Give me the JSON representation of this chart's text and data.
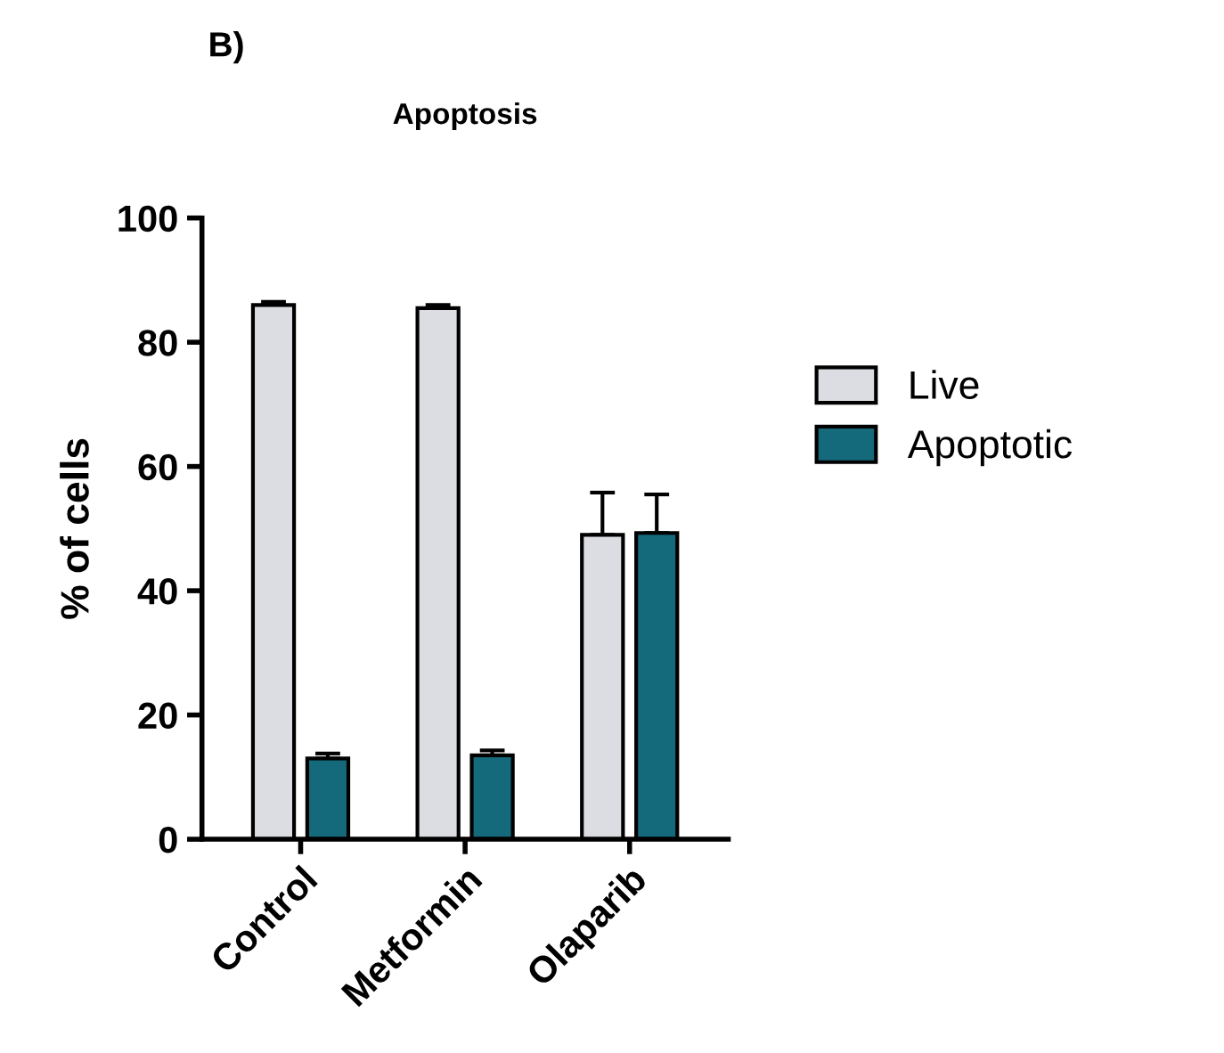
{
  "chart_data": {
    "type": "bar",
    "title": "Apoptosis",
    "ylabel": "% of cells",
    "annotations": [
      "B)"
    ],
    "categories": [
      "Control",
      "Metformin",
      "Olaparib"
    ],
    "series": [
      {
        "name": "Live",
        "color": "#dcdde3",
        "values": [
          86,
          85.5,
          49
        ],
        "errors": [
          [
            86,
            86.5
          ],
          [
            85.5,
            86
          ],
          [
            49,
            55.8
          ]
        ]
      },
      {
        "name": "Apoptotic",
        "color": "#14697a",
        "values": [
          13,
          13.5,
          49.3
        ],
        "errors": [
          [
            13,
            13.8
          ],
          [
            13.5,
            14.3
          ],
          [
            49.3,
            55.5
          ]
        ]
      }
    ],
    "ylim": [
      0,
      100
    ],
    "yticks": [
      0,
      20,
      40,
      60,
      80,
      100
    ],
    "grid": false,
    "legend": "right"
  }
}
